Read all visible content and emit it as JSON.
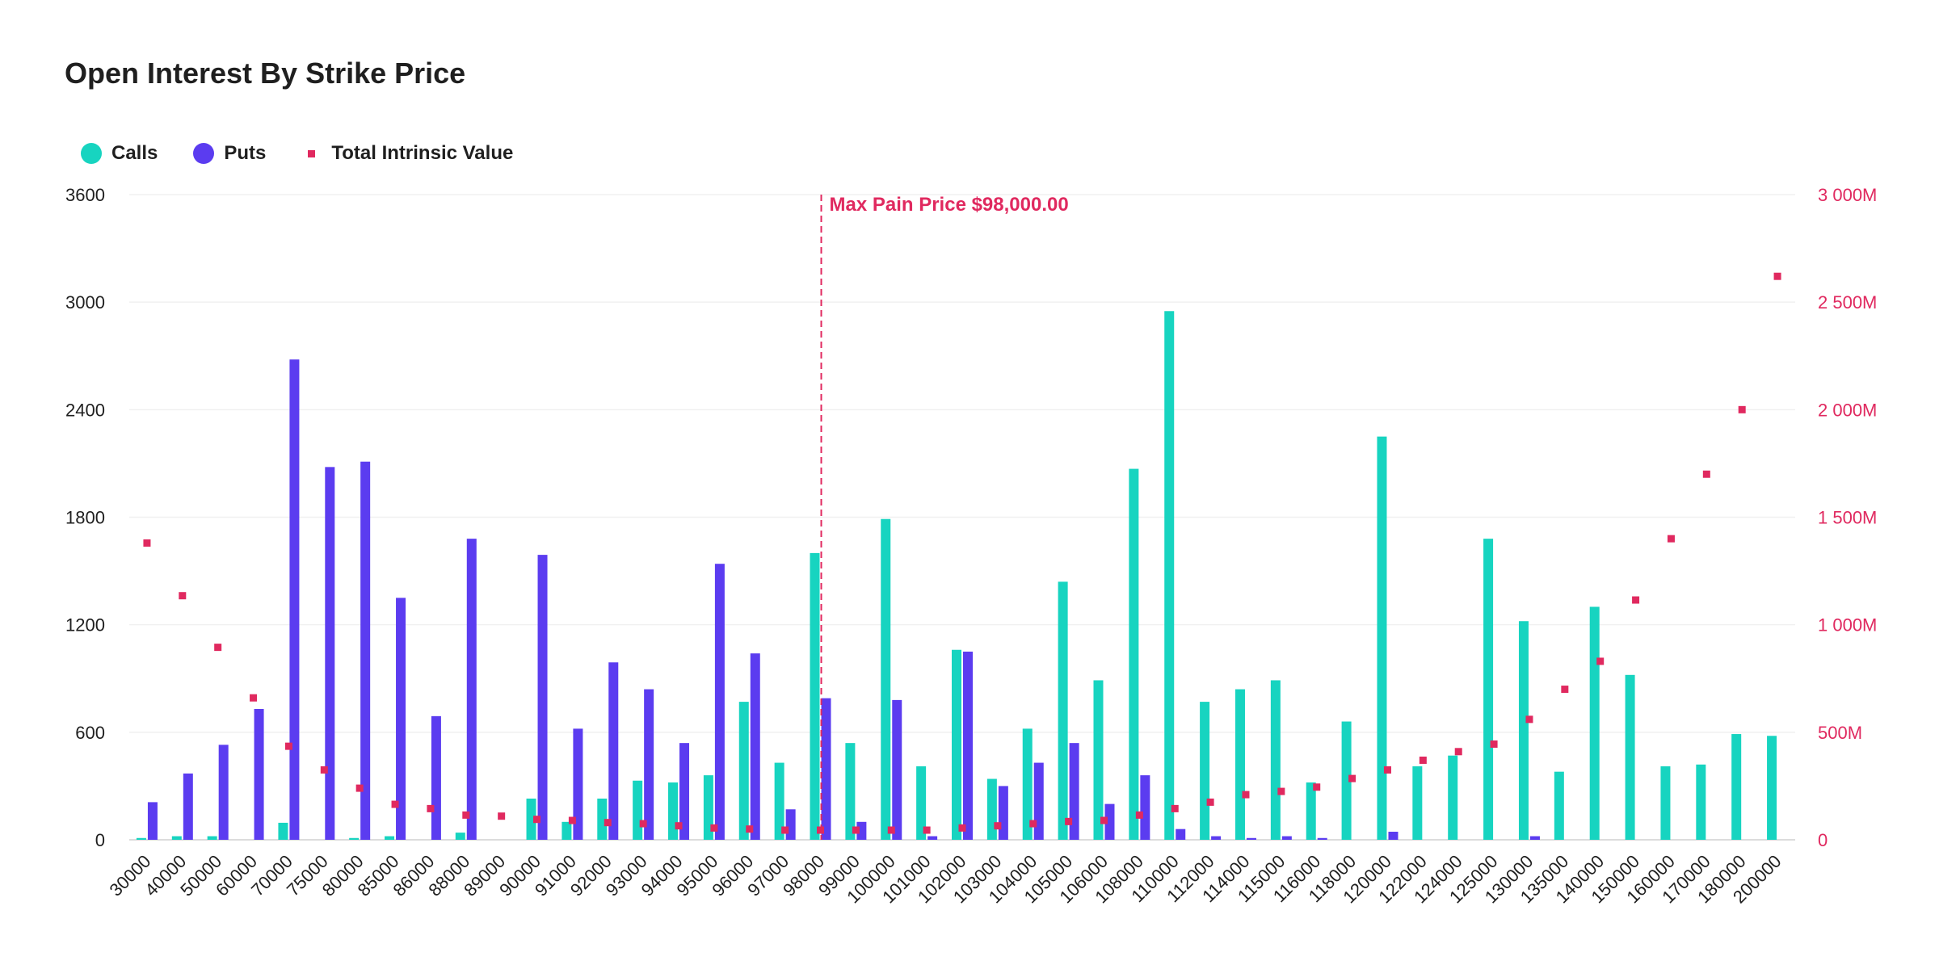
{
  "chart_data": {
    "type": "bar",
    "title": "Open Interest By Strike Price",
    "categories": [
      "30000",
      "40000",
      "50000",
      "60000",
      "70000",
      "75000",
      "80000",
      "85000",
      "86000",
      "88000",
      "89000",
      "90000",
      "91000",
      "92000",
      "93000",
      "94000",
      "95000",
      "96000",
      "97000",
      "98000",
      "99000",
      "100000",
      "101000",
      "102000",
      "103000",
      "104000",
      "105000",
      "106000",
      "108000",
      "110000",
      "112000",
      "114000",
      "115000",
      "116000",
      "118000",
      "120000",
      "122000",
      "124000",
      "125000",
      "130000",
      "135000",
      "140000",
      "150000",
      "160000",
      "170000",
      "180000",
      "200000"
    ],
    "series": [
      {
        "name": "Calls",
        "color": "#17d4c0",
        "axis": "left",
        "values": [
          10,
          20,
          20,
          0,
          95,
          0,
          10,
          20,
          0,
          40,
          0,
          230,
          100,
          230,
          330,
          320,
          360,
          770,
          430,
          1600,
          540,
          1790,
          410,
          1060,
          340,
          620,
          1440,
          890,
          2070,
          2950,
          770,
          840,
          890,
          320,
          660,
          2250,
          410,
          470,
          1680,
          1220,
          380,
          1300,
          920,
          410,
          420,
          590,
          580
        ]
      },
      {
        "name": "Puts",
        "color": "#5b3cf0",
        "axis": "left",
        "values": [
          210,
          370,
          530,
          730,
          2680,
          2080,
          2110,
          1350,
          690,
          1680,
          0,
          1590,
          620,
          990,
          840,
          540,
          1540,
          1040,
          170,
          790,
          100,
          780,
          20,
          1050,
          300,
          430,
          540,
          200,
          360,
          60,
          20,
          10,
          20,
          10,
          0,
          45,
          0,
          0,
          0,
          20,
          0,
          0,
          0,
          0,
          0,
          0,
          0
        ]
      },
      {
        "name": "Total Intrinsic Value",
        "color": "#e0295f",
        "axis": "right",
        "type": "scatter",
        "values": [
          1380,
          1135,
          895,
          660,
          435,
          325,
          240,
          165,
          145,
          115,
          110,
          95,
          90,
          80,
          75,
          65,
          55,
          50,
          45,
          45,
          45,
          45,
          45,
          55,
          65,
          75,
          85,
          90,
          115,
          145,
          175,
          210,
          225,
          245,
          285,
          325,
          370,
          410,
          445,
          560,
          700,
          830,
          1115,
          1400,
          1700,
          2000,
          2620
        ]
      }
    ],
    "ylim": [
      0,
      3600
    ],
    "yticks": [
      0,
      600,
      1200,
      1800,
      2400,
      3000,
      3600
    ],
    "y2lim": [
      0,
      3000
    ],
    "y2ticks": [
      "0",
      "500M",
      "1 000M",
      "1 500M",
      "2 000M",
      "2 500M",
      "3 000M"
    ],
    "y2unit_max": 3000,
    "annotation": {
      "category": "98000",
      "label": "Max Pain Price $98,000.00"
    },
    "grid": true,
    "legend_position": "top-left"
  },
  "legend": {
    "calls": "Calls",
    "puts": "Puts",
    "tiv": "Total Intrinsic Value"
  }
}
